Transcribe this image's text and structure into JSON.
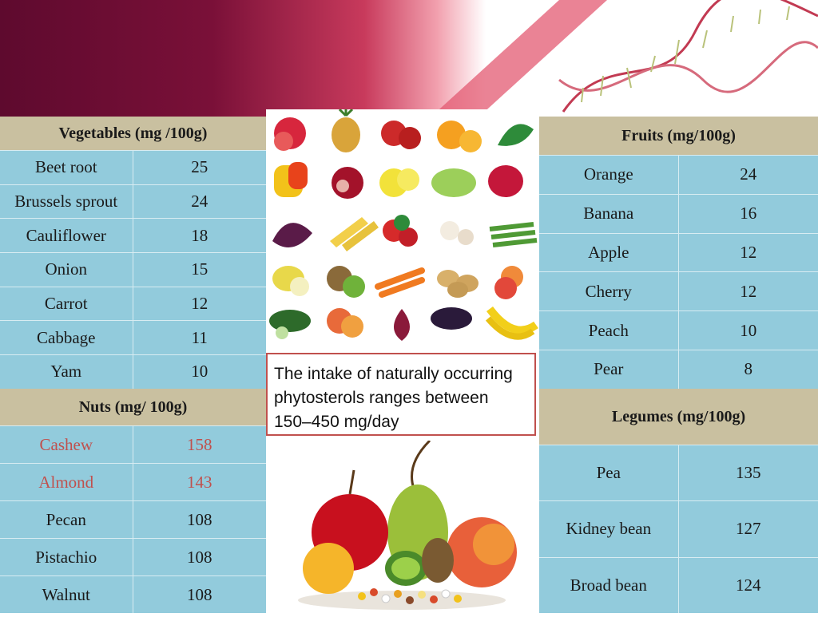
{
  "callout": "The intake of naturally occurring phytosterols ranges between 150–450 mg/day",
  "vegetables": {
    "header": "Vegetables (mg /100g)",
    "rows": [
      {
        "name": "Beet root",
        "value": "25"
      },
      {
        "name": "Brussels sprout",
        "value": "24"
      },
      {
        "name": "Cauliflower",
        "value": "18"
      },
      {
        "name": "Onion",
        "value": "15"
      },
      {
        "name": "Carrot",
        "value": "12"
      },
      {
        "name": "Cabbage",
        "value": "11"
      },
      {
        "name": "Yam",
        "value": "10"
      }
    ]
  },
  "nuts": {
    "header": "Nuts (mg/ 100g)",
    "rows": [
      {
        "name": "Cashew",
        "value": "158"
      },
      {
        "name": "Almond",
        "value": "143"
      },
      {
        "name": "Pecan",
        "value": "108"
      },
      {
        "name": "Pistachio",
        "value": "108"
      },
      {
        "name": "Walnut",
        "value": "108"
      }
    ]
  },
  "fruits": {
    "header": "Fruits (mg/100g)",
    "rows": [
      {
        "name": "Orange",
        "value": "24"
      },
      {
        "name": "Banana",
        "value": "16"
      },
      {
        "name": "Apple",
        "value": "12"
      },
      {
        "name": "Cherry",
        "value": "12"
      },
      {
        "name": "Peach",
        "value": "10"
      },
      {
        "name": "Pear",
        "value": "8"
      }
    ]
  },
  "legumes": {
    "header": "Legumes (mg/100g)",
    "rows": [
      {
        "name": "Pea",
        "value": "135"
      },
      {
        "name": "Kidney bean",
        "value": "127"
      },
      {
        "name": "Broad bean",
        "value": "124"
      }
    ]
  },
  "colors": {
    "banner_dark": "#6b0a32",
    "banner_pink": "#e0536e",
    "table_header": "#c9c0a0",
    "table_cell": "#92cbdc",
    "highlight_text": "#c0504d"
  }
}
